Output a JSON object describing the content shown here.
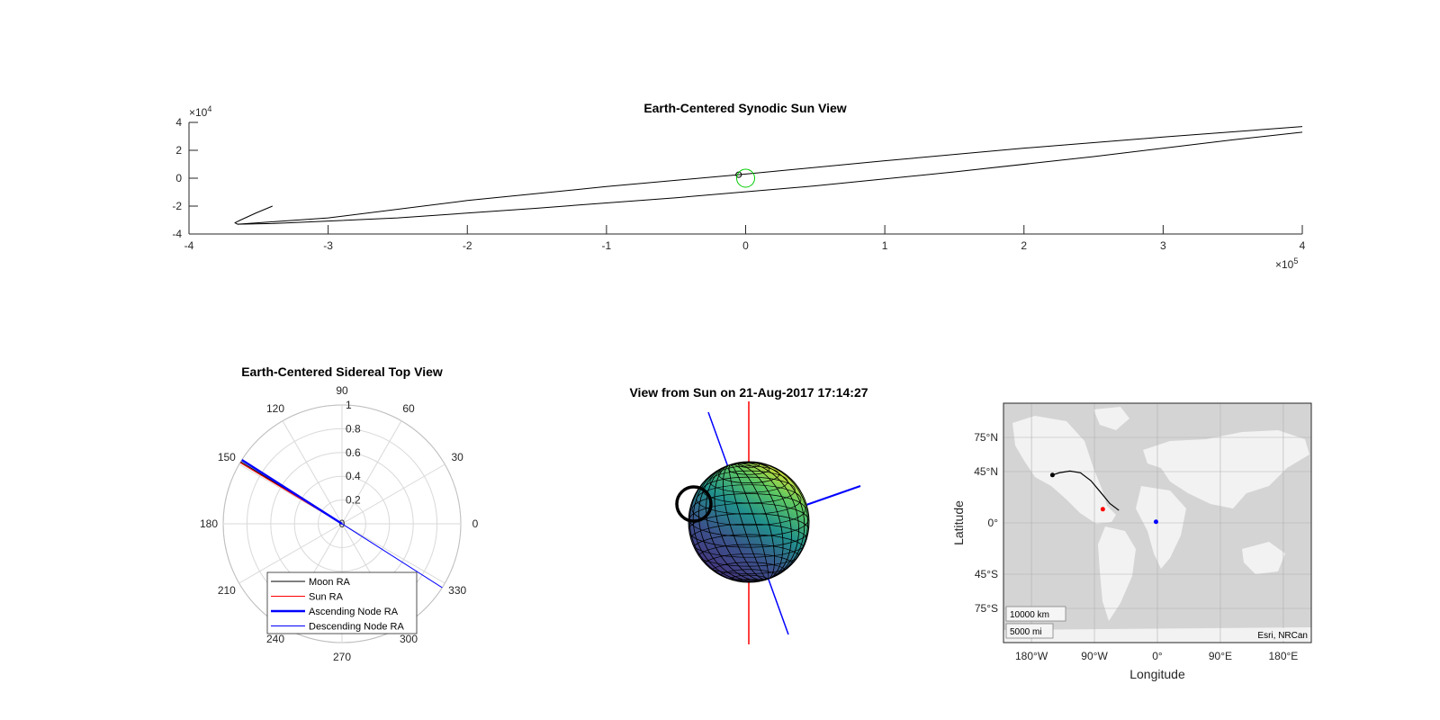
{
  "chart_data": [
    {
      "id": "synodic",
      "type": "line",
      "title": "Earth-Centered Synodic Sun View",
      "xlim": [
        -400000,
        400000
      ],
      "ylim": [
        -40000,
        40000
      ],
      "x_ticks": [
        -400000,
        -300000,
        -200000,
        -100000,
        0,
        100000,
        200000,
        300000,
        400000
      ],
      "x_tick_labels": [
        "-4",
        "-3",
        "-2",
        "-1",
        "0",
        "1",
        "2",
        "3",
        "4"
      ],
      "y_ticks": [
        -40000,
        -20000,
        0,
        20000,
        40000
      ],
      "y_tick_labels": [
        "-4",
        "-2",
        "0",
        "2",
        "4"
      ],
      "x_exponent": "×10",
      "x_exponent_power": "5",
      "y_exponent": "×10",
      "y_exponent_power": "4",
      "grid": false,
      "series": [
        {
          "color": "#000000",
          "x": [
            -340000,
            -352000,
            -363000,
            -367000,
            -365000,
            -340000,
            -250000,
            -150000,
            -50000,
            50000,
            150000,
            250000,
            350000,
            400000
          ],
          "y": [
            -20000,
            -25000,
            -30000,
            -32000,
            -33000,
            -32500,
            -28500,
            -21500,
            -14000,
            -5500,
            4500,
            15500,
            27500,
            33000
          ]
        },
        {
          "color": "#000000",
          "x": [
            -365000,
            -300000,
            -200000,
            -100000,
            -5000,
            100000,
            200000,
            300000,
            400000
          ],
          "y": [
            -33000,
            -28500,
            -16000,
            -6000,
            2500,
            12500,
            21500,
            29500,
            37000
          ]
        }
      ],
      "markers": [
        {
          "x": -5000,
          "y": 2500,
          "color": "#000000",
          "size": 3,
          "hollow": true
        },
        {
          "x": 0,
          "y": 0,
          "color": "#00cc00",
          "size": 10,
          "hollow": true
        }
      ]
    },
    {
      "id": "sidereal",
      "type": "polar",
      "title": "Earth-Centered Sidereal Top View",
      "r_max": 1,
      "r_ticks": [
        0.2,
        0.4,
        0.6,
        0.8,
        1
      ],
      "r_tick_labels": [
        "0.2",
        "0.4",
        "0.6",
        "0.8",
        "1"
      ],
      "theta_ticks_deg": [
        0,
        30,
        60,
        90,
        120,
        150,
        180,
        210,
        240,
        270,
        300,
        330
      ],
      "theta_tick_labels": [
        "0",
        "30",
        "60",
        "90",
        "120",
        "150",
        "180",
        "210",
        "240",
        "270",
        "300",
        "330"
      ],
      "r_origin_label": "0",
      "grid": true,
      "series": [
        {
          "name": "Moon RA",
          "color": "#000000",
          "width": 1,
          "theta_deg": [
            0,
            148.5
          ],
          "r": [
            0,
            1
          ]
        },
        {
          "name": "Sun RA",
          "color": "#ff0000",
          "width": 1,
          "theta_deg": [
            0,
            149
          ],
          "r": [
            0,
            1
          ]
        },
        {
          "name": "Ascending Node RA",
          "color": "#0000ff",
          "width": 2.5,
          "theta_deg": [
            0,
            147.5
          ],
          "r": [
            0,
            1
          ]
        },
        {
          "name": "Descending Node RA",
          "color": "#0000ff",
          "width": 1,
          "theta_deg": [
            0,
            327.5
          ],
          "r": [
            0,
            1
          ]
        }
      ],
      "legend": {
        "placement": "bottom",
        "entries": [
          "Moon RA",
          "Sun RA",
          "Ascending Node RA",
          "Descending Node RA"
        ]
      }
    },
    {
      "id": "sunview",
      "type": "3d-globe",
      "title": "View from Sun on 21-Aug-2017 17:14:27",
      "colormap": [
        "#440154",
        "#3b528b",
        "#21918c",
        "#5ec962",
        "#fde725"
      ],
      "lines": [
        {
          "color": "#ff0000",
          "label": "axis-red"
        },
        {
          "color": "#0000ff",
          "label": "axis-blue"
        }
      ]
    },
    {
      "id": "groundtrack",
      "type": "map",
      "xlabel": "Longitude",
      "ylabel": "Latitude",
      "xlim": [
        -220,
        220
      ],
      "ylim": [
        -105,
        105
      ],
      "lon_ticks": [
        -180,
        -90,
        0,
        90,
        180
      ],
      "lon_tick_labels": [
        "180°W",
        "90°W",
        "0°",
        "90°E",
        "180°E"
      ],
      "lat_ticks": [
        75,
        45,
        0,
        -45,
        -75
      ],
      "lat_tick_labels": [
        "75°N",
        "45°N",
        "0°",
        "45°S",
        "75°S"
      ],
      "attribution": "Esri, NRCan",
      "scale_km": "10000 km",
      "scale_mi": "5000 mi",
      "track": {
        "color": "#000000",
        "lon": [
          -150,
          -140,
          -125,
          -110,
          -95,
          -80,
          -68,
          -55
        ],
        "lat": [
          42,
          44,
          45.5,
          44,
          37,
          26,
          17,
          11
        ]
      },
      "markers": [
        {
          "lon": -150,
          "lat": 42,
          "color": "#000000"
        },
        {
          "lon": -78,
          "lat": 12,
          "color": "#ff0000"
        },
        {
          "lon": -2,
          "lat": 1,
          "color": "#0000ff"
        }
      ]
    }
  ]
}
